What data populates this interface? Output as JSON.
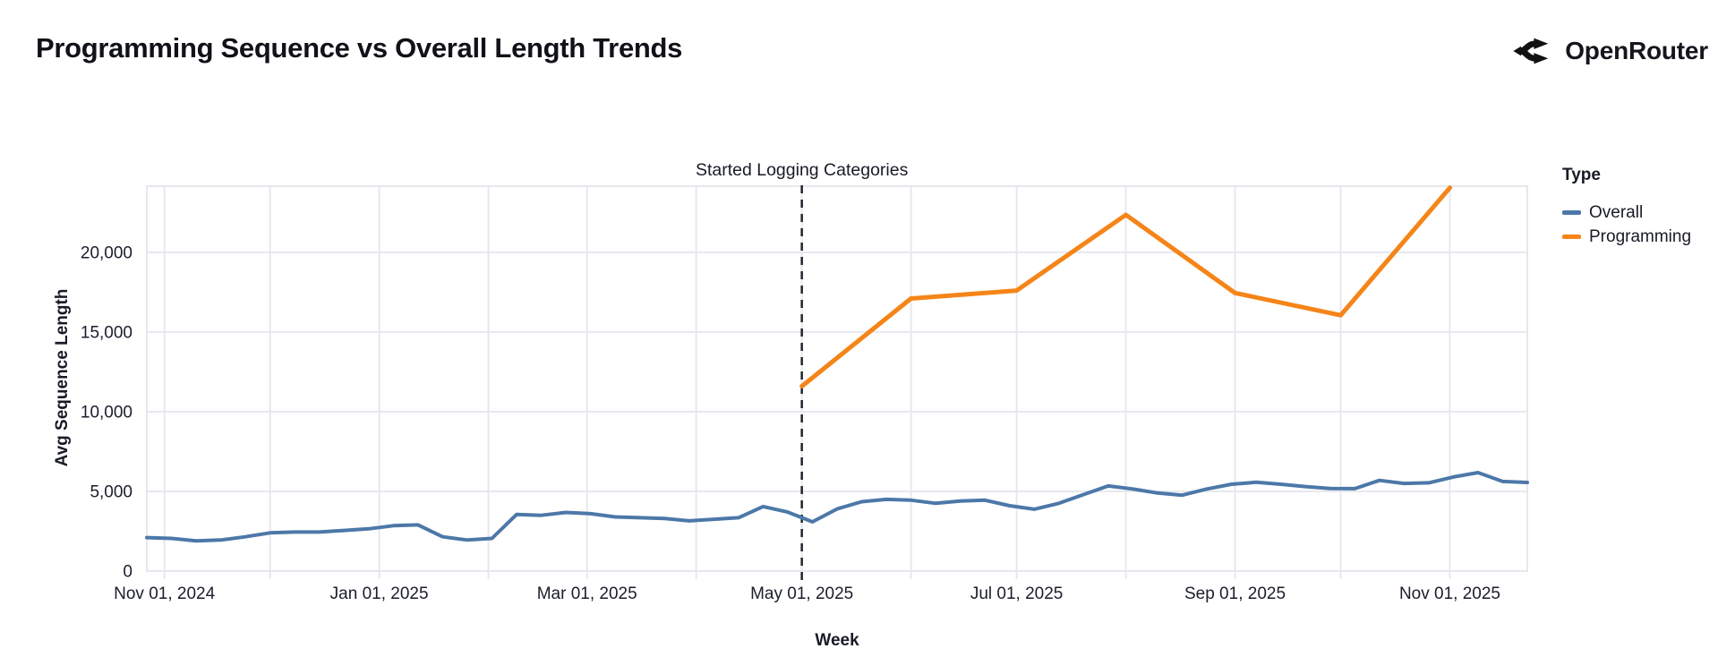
{
  "header": {
    "title": "Programming Sequence vs Overall Length Trends",
    "brand": "OpenRouter"
  },
  "annotation": {
    "label": "Started Logging Categories",
    "date": "2025-05-01"
  },
  "legend": {
    "title": "Type",
    "items": [
      {
        "label": "Overall",
        "color": "#4c78a8"
      },
      {
        "label": "Programming",
        "color": "#f58518"
      }
    ]
  },
  "axes": {
    "x_title": "Week",
    "y_title": "Avg Sequence Length",
    "y_ticks": [
      {
        "value": 0,
        "label": "0"
      },
      {
        "value": 5000,
        "label": "5,000"
      },
      {
        "value": 10000,
        "label": "10,000"
      },
      {
        "value": 15000,
        "label": "15,000"
      },
      {
        "value": 20000,
        "label": "20,000"
      }
    ],
    "x_ticks": [
      {
        "date": "2024-11-01",
        "label": "Nov 01, 2024"
      },
      {
        "date": "2025-01-01",
        "label": "Jan 01, 2025"
      },
      {
        "date": "2025-03-01",
        "label": "Mar 01, 2025"
      },
      {
        "date": "2025-05-01",
        "label": "May 01, 2025"
      },
      {
        "date": "2025-07-01",
        "label": "Jul 01, 2025"
      },
      {
        "date": "2025-09-01",
        "label": "Sep 01, 2025"
      },
      {
        "date": "2025-11-01",
        "label": "Nov 01, 2025"
      }
    ],
    "x_gridlines": [
      "2024-11-01",
      "2024-12-01",
      "2025-01-01",
      "2025-02-01",
      "2025-03-01",
      "2025-04-01",
      "2025-05-01",
      "2025-06-01",
      "2025-07-01",
      "2025-08-01",
      "2025-09-01",
      "2025-10-01",
      "2025-11-01"
    ]
  },
  "chart_data": {
    "type": "line",
    "title": "Programming Sequence vs Overall Length Trends",
    "xlabel": "Week",
    "ylabel": "Avg Sequence Length",
    "x_domain": [
      "2024-10-27",
      "2025-11-23"
    ],
    "ylim": [
      0,
      24150
    ],
    "grid": true,
    "legend_position": "right",
    "annotation": {
      "label": "Started Logging Categories",
      "date": "2025-05-01"
    },
    "series": [
      {
        "name": "Overall",
        "color": "#4c78a8",
        "x": [
          "2024-10-27",
          "2024-11-03",
          "2024-11-10",
          "2024-11-17",
          "2024-11-24",
          "2024-12-01",
          "2024-12-08",
          "2024-12-15",
          "2024-12-22",
          "2024-12-29",
          "2025-01-05",
          "2025-01-12",
          "2025-01-19",
          "2025-01-26",
          "2025-02-02",
          "2025-02-09",
          "2025-02-16",
          "2025-02-23",
          "2025-03-02",
          "2025-03-09",
          "2025-03-16",
          "2025-03-23",
          "2025-03-30",
          "2025-04-06",
          "2025-04-13",
          "2025-04-20",
          "2025-04-27",
          "2025-05-04",
          "2025-05-11",
          "2025-05-18",
          "2025-05-25",
          "2025-06-01",
          "2025-06-08",
          "2025-06-15",
          "2025-06-22",
          "2025-06-29",
          "2025-07-06",
          "2025-07-13",
          "2025-07-20",
          "2025-07-27",
          "2025-08-03",
          "2025-08-10",
          "2025-08-17",
          "2025-08-24",
          "2025-08-31",
          "2025-09-07",
          "2025-09-14",
          "2025-09-21",
          "2025-09-28",
          "2025-10-05",
          "2025-10-12",
          "2025-10-19",
          "2025-10-26",
          "2025-11-02",
          "2025-11-09",
          "2025-11-16",
          "2025-11-23"
        ],
        "values": [
          2100,
          2050,
          1900,
          1950,
          2150,
          2400,
          2450,
          2450,
          2550,
          2650,
          2850,
          2900,
          2150,
          1950,
          2050,
          3550,
          3500,
          3680,
          3600,
          3400,
          3350,
          3300,
          3150,
          3250,
          3350,
          4050,
          3700,
          3090,
          3900,
          4350,
          4500,
          4450,
          4250,
          4400,
          4450,
          4100,
          3880,
          4250,
          4800,
          5340,
          5150,
          4900,
          4760,
          5150,
          5450,
          5570,
          5450,
          5300,
          5180,
          5170,
          5690,
          5500,
          5540,
          5900,
          6180,
          5620,
          5560
        ]
      },
      {
        "name": "Programming",
        "color": "#f58518",
        "x": [
          "2025-05-01",
          "2025-06-01",
          "2025-07-01",
          "2025-08-01",
          "2025-09-01",
          "2025-10-01",
          "2025-11-01"
        ],
        "values": [
          11600,
          17100,
          17600,
          22350,
          17450,
          16050,
          24050
        ]
      }
    ]
  },
  "colors": {
    "background": "#ffffff",
    "grid": "#e7e8ee",
    "text": "#181b26",
    "annotation_rule": "#23252d"
  }
}
